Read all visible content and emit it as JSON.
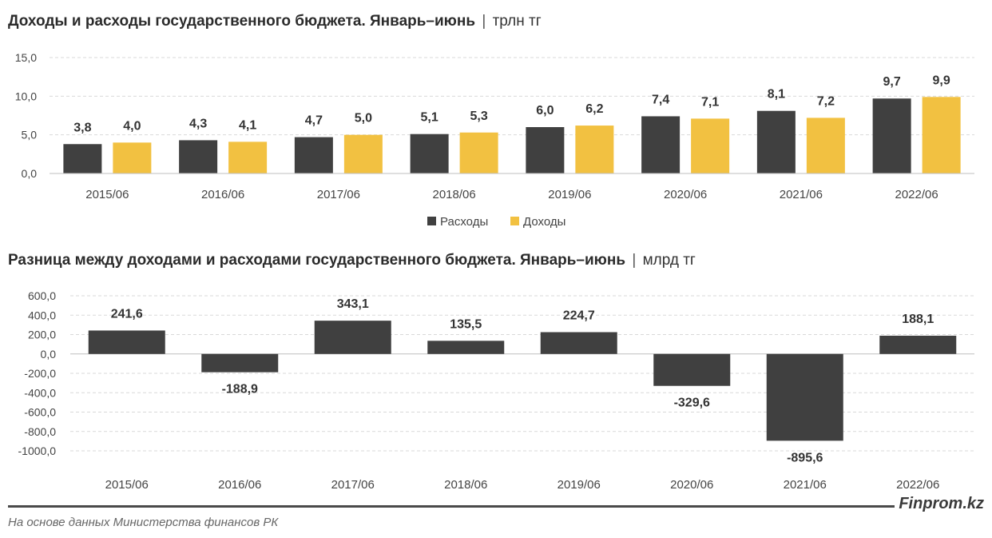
{
  "title1": {
    "main": "Доходы и расходы государственного бюджета. Январь–июнь",
    "sep": "|",
    "unit": "трлн тг"
  },
  "title2": {
    "main": "Разница между доходами и расходами государственного бюджета. Январь–июнь",
    "sep": "|",
    "unit": "млрд тг"
  },
  "colors": {
    "dark": "#404040",
    "yellow": "#f2c141",
    "grid": "#d9d9d9"
  },
  "chart_data": [
    {
      "type": "bar",
      "categories": [
        "2015/06",
        "2016/06",
        "2017/06",
        "2018/06",
        "2019/06",
        "2020/06",
        "2021/06",
        "2022/06"
      ],
      "series": [
        {
          "name": "Расходы",
          "values": [
            3.8,
            4.3,
            4.7,
            5.1,
            6.0,
            7.4,
            8.1,
            9.7
          ],
          "labels": [
            "3,8",
            "4,3",
            "4,7",
            "5,1",
            "6,0",
            "7,4",
            "8,1",
            "9,7"
          ]
        },
        {
          "name": "Доходы",
          "values": [
            4.0,
            4.1,
            5.0,
            5.3,
            6.2,
            7.1,
            7.2,
            9.9
          ],
          "labels": [
            "4,0",
            "4,1",
            "5,0",
            "5,3",
            "6,2",
            "7,1",
            "7,2",
            "9,9"
          ]
        }
      ],
      "ylim": [
        0,
        15
      ],
      "yticks": [
        0,
        5,
        10,
        15
      ],
      "ytick_labels": [
        "0,0",
        "5,0",
        "10,0",
        "15,0"
      ],
      "legend": "bottom-center",
      "grid": true
    },
    {
      "type": "bar",
      "categories": [
        "2015/06",
        "2016/06",
        "2017/06",
        "2018/06",
        "2019/06",
        "2020/06",
        "2021/06",
        "2022/06"
      ],
      "values": [
        241.6,
        -188.9,
        343.1,
        135.5,
        224.7,
        -329.6,
        -895.6,
        188.1
      ],
      "labels": [
        "241,6",
        "-188,9",
        "343,1",
        "135,5",
        "224,7",
        "-329,6",
        "-895,6",
        "188,1"
      ],
      "ylim": [
        -1000,
        600
      ],
      "yticks": [
        600,
        400,
        200,
        0,
        -200,
        -400,
        -600,
        -800,
        -1000
      ],
      "ytick_labels": [
        "600,0",
        "400,0",
        "200,0",
        "0,0",
        "-200,0",
        "-400,0",
        "-600,0",
        "-800,0",
        "-1000,0"
      ],
      "grid": true
    }
  ],
  "footer": {
    "brand": "Finprom.kz",
    "source": "На основе данных Министерства финансов РК"
  }
}
